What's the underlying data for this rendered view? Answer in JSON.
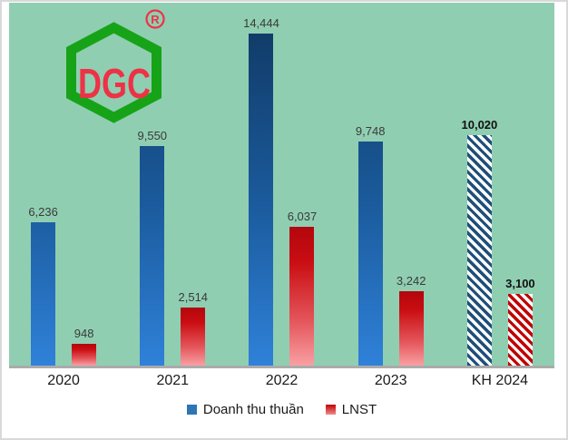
{
  "logo": {
    "text": "DGC",
    "registered_mark": "R"
  },
  "chart_data": {
    "type": "bar",
    "title": "",
    "categories": [
      "2020",
      "2021",
      "2022",
      "2023",
      "KH 2024"
    ],
    "series": [
      {
        "name": "Doanh thu thuần",
        "color": "#2e75b6",
        "values": [
          6236,
          9550,
          14444,
          9748,
          10020
        ],
        "labels": [
          "6,236",
          "9,550",
          "14,444",
          "9,748",
          "10,020"
        ]
      },
      {
        "name": "LNST",
        "color": "#c00000",
        "values": [
          948,
          2514,
          6037,
          3242,
          3100
        ],
        "labels": [
          "948",
          "2,514",
          "6,037",
          "3,242",
          "3,100"
        ]
      }
    ],
    "hatched_category": "KH 2024",
    "hatched_category_index": 4,
    "ylim": [
      0,
      14444
    ],
    "grid": false,
    "legend_position": "bottom",
    "plot_background": "#90ceb2"
  }
}
